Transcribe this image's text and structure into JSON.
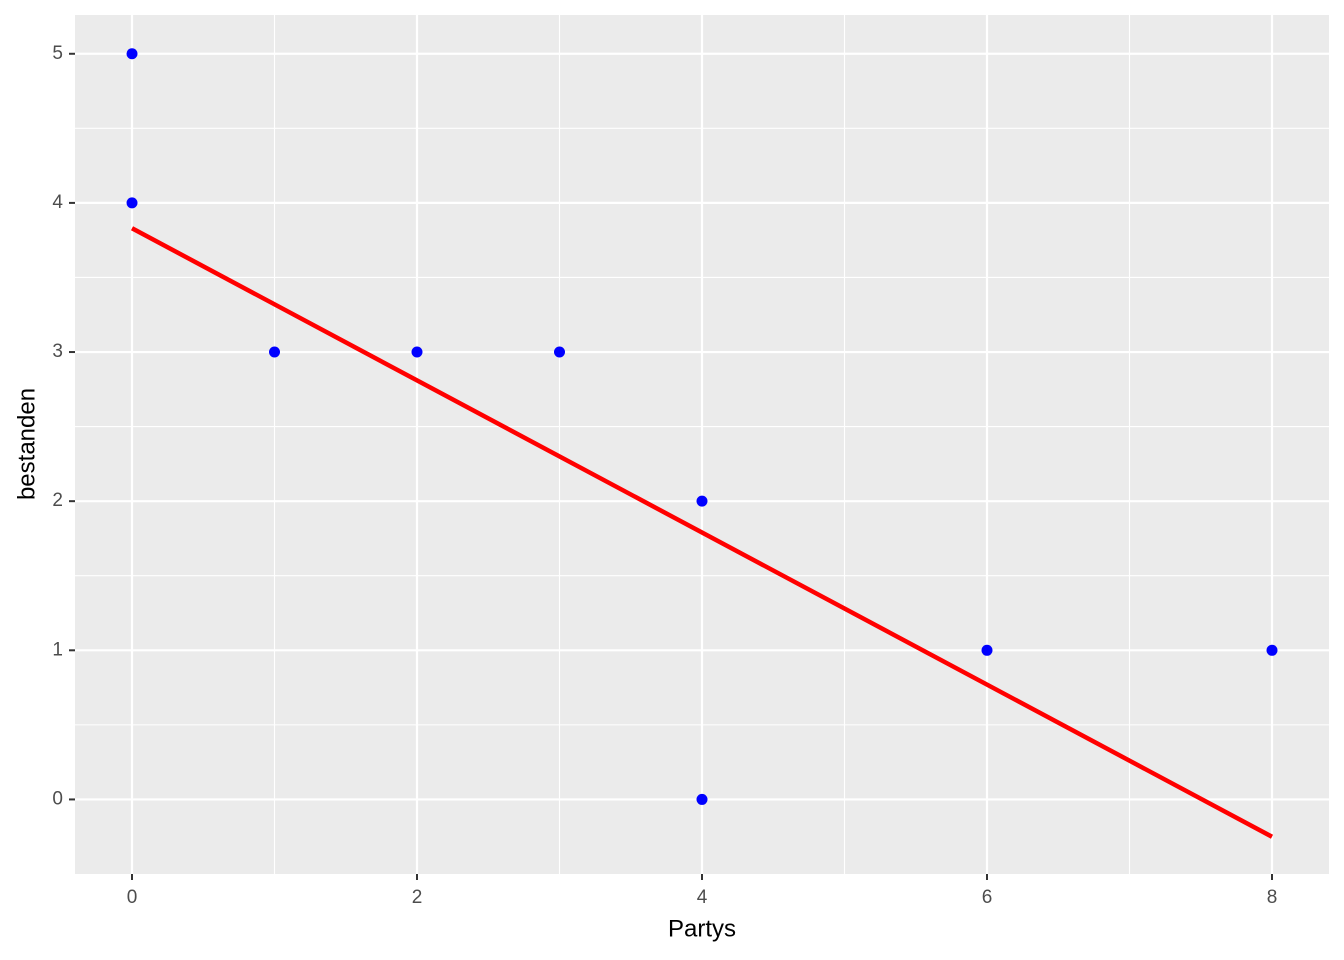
{
  "chart_data": {
    "type": "scatter",
    "x_label": "Partys",
    "y_label": "bestanden",
    "x": [
      0,
      0,
      1,
      2,
      3,
      4,
      4,
      6,
      8
    ],
    "y": [
      5,
      4,
      3,
      3,
      3,
      2,
      0,
      1,
      1
    ],
    "color": "#0000ff",
    "fit_line": {
      "x": [
        0,
        8
      ],
      "y": [
        3.83,
        -0.25
      ],
      "color": "#ff0000"
    },
    "xlim": [
      -0.4,
      8.4
    ],
    "ylim": [
      -0.5,
      5.26
    ],
    "xticks": [
      0,
      2,
      4,
      6,
      8
    ],
    "yticks": [
      0,
      1,
      2,
      3,
      4,
      5
    ],
    "grid": true
  }
}
